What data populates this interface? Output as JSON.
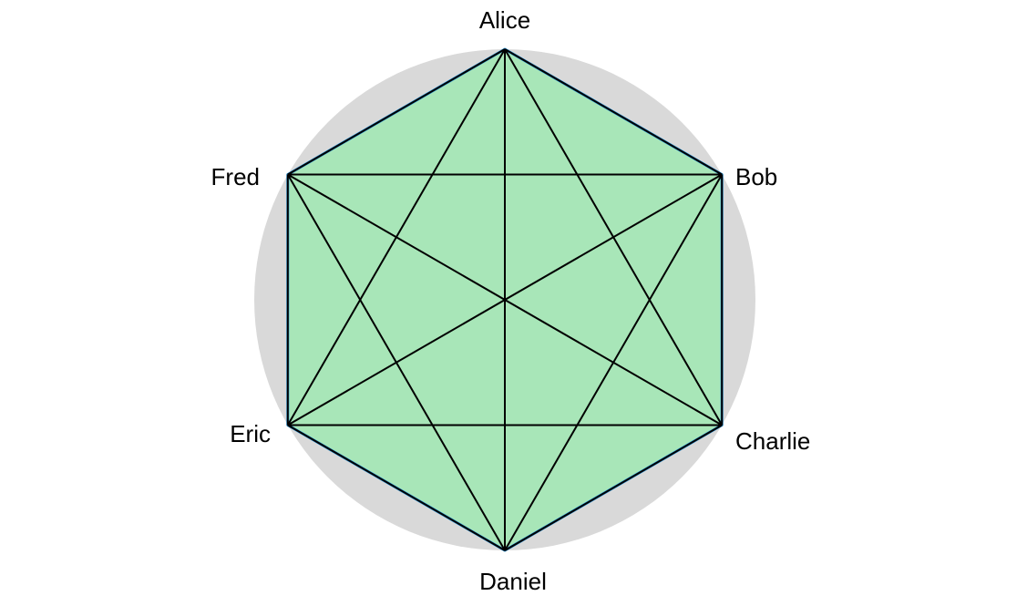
{
  "nodes": [
    {
      "id": "alice",
      "label": "Alice"
    },
    {
      "id": "bob",
      "label": "Bob"
    },
    {
      "id": "charlie",
      "label": "Charlie"
    },
    {
      "id": "daniel",
      "label": "Daniel"
    },
    {
      "id": "eric",
      "label": "Eric"
    },
    {
      "id": "fred",
      "label": "Fred"
    }
  ],
  "edges": [
    [
      "alice",
      "bob"
    ],
    [
      "alice",
      "charlie"
    ],
    [
      "alice",
      "daniel"
    ],
    [
      "alice",
      "eric"
    ],
    [
      "alice",
      "fred"
    ],
    [
      "bob",
      "charlie"
    ],
    [
      "bob",
      "daniel"
    ],
    [
      "bob",
      "eric"
    ],
    [
      "bob",
      "fred"
    ],
    [
      "charlie",
      "daniel"
    ],
    [
      "charlie",
      "eric"
    ],
    [
      "charlie",
      "fred"
    ],
    [
      "daniel",
      "eric"
    ],
    [
      "daniel",
      "fred"
    ],
    [
      "eric",
      "fred"
    ]
  ],
  "colors": {
    "background_circle": "#d9d9d9",
    "polygon_fill": "#a8e6b8",
    "polygon_outline": "#1f8fd6",
    "edge": "#000000",
    "label": "#000000"
  }
}
